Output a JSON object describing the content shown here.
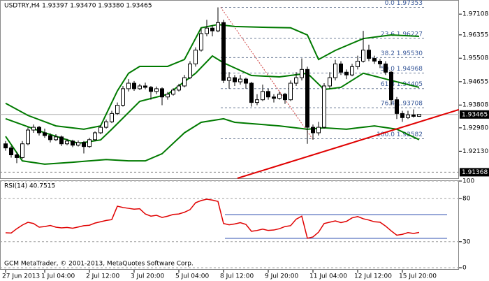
{
  "chart_data": {
    "type": "candlestick",
    "title": "USDTRY,H4  1.93397 1.93470 1.93380 1.93465",
    "categories": [
      "27 Jun 2013",
      null,
      null,
      null,
      null,
      null,
      null,
      "1 Jul 04:00",
      null,
      null,
      null,
      null,
      null,
      null,
      null,
      "2 Jul 12:00",
      null,
      null,
      null,
      null,
      null,
      null,
      null,
      "3 Jul 20:00",
      null,
      null,
      null,
      null,
      null,
      null,
      null,
      "5 Jul 04:00",
      null,
      null,
      null,
      null,
      null,
      null,
      null,
      "8 Jul 12:00",
      null,
      null,
      null,
      null,
      null,
      null,
      null,
      "9 Jul 20:00",
      null,
      null,
      null,
      null,
      null,
      null,
      null,
      "11 Jul 04:00",
      null,
      null,
      null,
      null,
      null,
      null,
      null,
      "12 Jul 12:00",
      null,
      null,
      null,
      null,
      null,
      null,
      null,
      "15 Jul 20:00",
      null,
      null,
      null
    ],
    "open": [
      1.924,
      1.9225,
      1.92,
      1.919,
      1.924,
      1.929,
      1.93,
      1.928,
      1.927,
      1.9255,
      1.9265,
      1.924,
      1.925,
      1.9235,
      1.9245,
      1.923,
      1.9255,
      1.928,
      1.93,
      1.932,
      1.935,
      1.938,
      1.944,
      1.946,
      1.944,
      1.945,
      1.9445,
      1.943,
      1.944,
      1.941,
      1.942,
      1.9435,
      1.945,
      1.948,
      1.953,
      1.958,
      1.964,
      1.966,
      1.965,
      1.968,
      1.947,
      1.948,
      1.9465,
      1.9475,
      1.946,
      1.939,
      1.94,
      1.943,
      1.941,
      1.9405,
      1.942,
      1.94,
      1.946,
      1.948,
      1.951,
      1.93,
      1.928,
      1.93,
      1.945,
      1.948,
      1.953,
      1.95,
      1.949,
      1.952,
      1.954,
      1.958,
      1.955,
      1.954,
      1.953,
      1.95,
      1.94,
      1.935,
      1.9335,
      1.9345,
      1.93397
    ],
    "high": [
      1.925,
      1.9232,
      1.921,
      1.925,
      1.93,
      1.931,
      1.9305,
      1.9295,
      1.9278,
      1.9275,
      1.927,
      1.9258,
      1.9255,
      1.9252,
      1.925,
      1.9262,
      1.9285,
      1.9308,
      1.9328,
      1.936,
      1.939,
      1.945,
      1.9475,
      1.9468,
      1.9458,
      1.9462,
      1.945,
      1.9448,
      1.9445,
      1.9428,
      1.9442,
      1.9458,
      1.949,
      1.954,
      1.959,
      1.966,
      1.969,
      1.967,
      1.97353,
      1.969,
      1.95,
      1.949,
      1.949,
      1.948,
      1.9465,
      1.942,
      1.9455,
      1.944,
      1.942,
      1.943,
      1.9425,
      1.947,
      1.95,
      1.955,
      1.952,
      1.931,
      1.932,
      1.946,
      1.95,
      1.9545,
      1.954,
      1.951,
      1.953,
      1.956,
      1.965,
      1.96,
      1.956,
      1.9548,
      1.954,
      1.9505,
      1.941,
      1.936,
      1.936,
      1.9365,
      1.9347
    ],
    "low": [
      1.9215,
      1.919,
      1.917,
      1.9185,
      1.9235,
      1.928,
      1.927,
      1.9262,
      1.9245,
      1.925,
      1.9232,
      1.9235,
      1.9228,
      1.923,
      1.9205,
      1.9225,
      1.925,
      1.9275,
      1.9295,
      1.9315,
      1.9345,
      1.9375,
      1.943,
      1.9432,
      1.9435,
      1.9438,
      1.94,
      1.942,
      1.938,
      1.94,
      1.9415,
      1.943,
      1.9445,
      1.9475,
      1.952,
      1.9575,
      1.963,
      1.963,
      1.9645,
      1.946,
      1.944,
      1.945,
      1.9455,
      1.944,
      1.9375,
      1.938,
      1.9395,
      1.94,
      1.939,
      1.94,
      1.9385,
      1.9395,
      1.945,
      1.947,
      1.924,
      1.9255,
      1.927,
      1.9295,
      1.944,
      1.947,
      1.949,
      1.9475,
      1.9485,
      1.951,
      1.9535,
      1.954,
      1.953,
      1.9515,
      1.949,
      1.938,
      1.933,
      1.932,
      1.933,
      1.9335,
      1.9338
    ],
    "close": [
      1.9225,
      1.92,
      1.919,
      1.924,
      1.929,
      1.93,
      1.928,
      1.927,
      1.9255,
      1.9265,
      1.924,
      1.925,
      1.9235,
      1.9245,
      1.923,
      1.9255,
      1.928,
      1.93,
      1.932,
      1.935,
      1.938,
      1.944,
      1.946,
      1.944,
      1.945,
      1.9445,
      1.943,
      1.944,
      1.941,
      1.942,
      1.9435,
      1.945,
      1.948,
      1.953,
      1.958,
      1.964,
      1.966,
      1.965,
      1.968,
      1.947,
      1.948,
      1.9465,
      1.9475,
      1.946,
      1.939,
      1.94,
      1.943,
      1.941,
      1.9405,
      1.942,
      1.94,
      1.946,
      1.948,
      1.951,
      1.93,
      1.928,
      1.93,
      1.945,
      1.948,
      1.953,
      1.95,
      1.949,
      1.952,
      1.954,
      1.958,
      1.955,
      1.954,
      1.953,
      1.95,
      1.94,
      1.935,
      1.9335,
      1.9345,
      1.93397,
      1.93465
    ],
    "up_color": "#ffffff",
    "down_color": "#000000",
    "ylim": [
      1.9115,
      1.9762
    ],
    "yticks": [
      1.97108,
      1.96355,
      1.95508,
      1.94655,
      1.93808,
      {
        "value": 1.9298,
        "label": "1.92980"
      },
      {
        "value": 1.9213,
        "label": "1.92130"
      }
    ],
    "horizontal_line": 1.91368,
    "bands": [
      {
        "color": "#007a00",
        "x": [
          0,
          4,
          9,
          14,
          17,
          20,
          22,
          24,
          29,
          32,
          35,
          38,
          41,
          46,
          51,
          54,
          56,
          59,
          64,
          69,
          74
        ],
        "values": [
          1.9387,
          1.9343,
          1.9305,
          1.9293,
          1.9305,
          1.9432,
          1.9496,
          1.9521,
          1.9521,
          1.9546,
          1.9661,
          1.9673,
          1.9666,
          1.9663,
          1.9661,
          1.9635,
          1.9546,
          1.9579,
          1.9622,
          1.9635,
          1.963
        ]
      },
      {
        "color": "#007a00",
        "x": [
          0,
          7,
          13,
          17,
          19,
          24,
          29,
          34,
          37,
          39,
          44,
          49,
          54,
          57,
          60,
          64,
          69,
          74
        ],
        "values": [
          1.9331,
          1.928,
          1.9242,
          1.9254,
          1.9293,
          1.9394,
          1.942,
          1.9496,
          1.9559,
          1.9534,
          1.9488,
          1.9483,
          1.9496,
          1.9437,
          1.9445,
          1.9496,
          1.947,
          1.9445
        ]
      },
      {
        "color": "#007a00",
        "x": [
          0,
          3,
          7,
          12,
          18,
          22,
          25,
          28,
          32,
          35,
          39,
          41,
          49,
          54,
          57,
          61,
          66,
          70,
          74
        ],
        "values": [
          1.9267,
          1.9178,
          1.9166,
          1.9173,
          1.9183,
          1.9178,
          1.9178,
          1.9204,
          1.928,
          1.9318,
          1.9331,
          1.9318,
          1.9305,
          1.9293,
          1.9298,
          1.9293,
          1.9305,
          1.9293,
          1.9255
        ]
      }
    ],
    "trendline": {
      "color": "#e00000",
      "x": [
        41.5,
        81.1
      ],
      "values": [
        1.9115,
        1.9364
      ]
    },
    "fibo": {
      "color": "#6f7f99",
      "x": [
        38.5,
        54.9
      ],
      "levels": [
        {
          "label": "0.0 1.97353",
          "value": 1.97353
        },
        {
          "label": "23.6 1.96227",
          "value": 1.96227
        },
        {
          "label": "38.2 1.95530",
          "value": 1.9553
        },
        {
          "label": "50.0 1.94968",
          "value": 1.94968
        },
        {
          "label": "61.8 1.94405",
          "value": 1.94405
        },
        {
          "label": "76.4 1.93708",
          "value": 1.93708
        },
        {
          "label": "100.0 1.92582",
          "value": 1.92582
        }
      ]
    },
    "indicator": {
      "type": "line",
      "title": "RSI(14) 40.7515",
      "color": "#e00000",
      "values": [
        40.3,
        40,
        45,
        49.2,
        52.4,
        51,
        46.8,
        47.5,
        48.8,
        46.8,
        46,
        46.5,
        45.6,
        47,
        48.5,
        49,
        51.5,
        53,
        54.5,
        55.5,
        71,
        69.5,
        68.5,
        67.5,
        68,
        62,
        59.5,
        60.5,
        58,
        59.5,
        61.5,
        62,
        64,
        67,
        75,
        77.5,
        79,
        78,
        76.5,
        51,
        49.5,
        50.5,
        52,
        50,
        42,
        43,
        44.5,
        43,
        43.5,
        45,
        47.5,
        48.5,
        56,
        59.5,
        34,
        35.5,
        41,
        51,
        52.5,
        54,
        52,
        53.5,
        57.5,
        59,
        56.5,
        55,
        53,
        52.5,
        48,
        42.5,
        37.5,
        38.5,
        40.5,
        39.5,
        40.7515
      ],
      "ylim": [
        0,
        100
      ],
      "yticks": [
        100,
        80,
        30,
        0
      ],
      "levels": [
        61.3,
        33.9
      ],
      "level_color": "#3050b0"
    },
    "footer": "GCM MetaTrader, © 2001-2013, MetaQuotes Software Corp."
  }
}
